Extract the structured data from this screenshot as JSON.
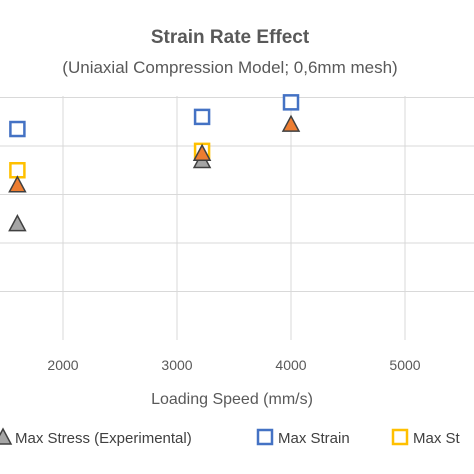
{
  "chart_data": {
    "type": "scatter",
    "title": "Strain Rate Effect",
    "subtitle": "(Uniaxial Compression Model; 0,6mm mesh)",
    "xlabel": "Loading Speed (mm/s)",
    "ylabel": "",
    "xlim": [
      1000,
      6000
    ],
    "ylim": [
      0,
      6
    ],
    "x_ticks": [
      2000,
      3000,
      4000,
      5000
    ],
    "grid": true,
    "legend_position": "bottom",
    "series": [
      {
        "name": "Max Stress (Experimental)",
        "marker": "triangle",
        "color": "#404040",
        "fill": "#a5a5a5",
        "points": [
          {
            "x": 1600,
            "y": 2.4
          },
          {
            "x": 3220,
            "y": 3.7
          }
        ]
      },
      {
        "name": "Max Strain",
        "marker": "square",
        "color": "#4472c4",
        "fill": "#ffffff",
        "points": [
          {
            "x": 1600,
            "y": 4.35
          },
          {
            "x": 3220,
            "y": 4.6
          },
          {
            "x": 4000,
            "y": 4.9
          }
        ]
      },
      {
        "name": "Max Stress",
        "legend_visible_text": "Max St",
        "marker": "square",
        "color": "#ffc000",
        "fill": "#ffffff",
        "points": [
          {
            "x": 1600,
            "y": 3.5
          },
          {
            "x": 3220,
            "y": 3.9
          }
        ]
      },
      {
        "name": "",
        "marker": "triangle",
        "color": "#404040",
        "fill": "#ed7d31",
        "points": [
          {
            "x": 1600,
            "y": 3.2
          },
          {
            "x": 3220,
            "y": 3.85
          },
          {
            "x": 4000,
            "y": 4.45
          }
        ]
      }
    ]
  }
}
